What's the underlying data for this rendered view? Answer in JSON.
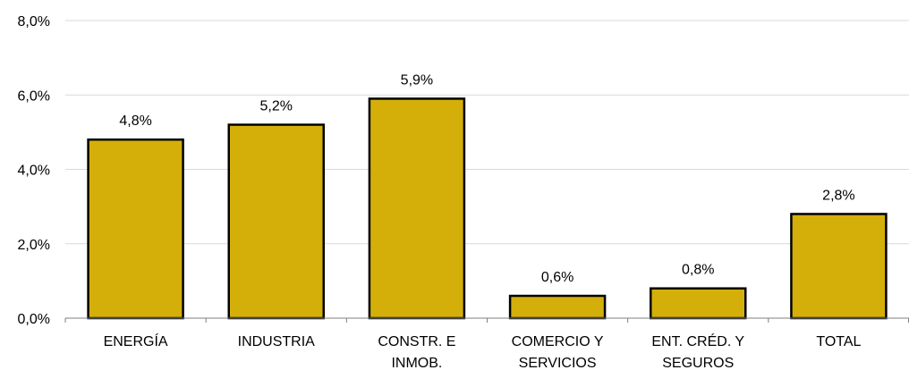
{
  "chart_data": {
    "type": "bar",
    "title": "",
    "xlabel": "",
    "ylabel": "",
    "categories": [
      [
        "ENERGÍA"
      ],
      [
        "INDUSTRIA"
      ],
      [
        "CONSTR. E",
        "INMOB."
      ],
      [
        "COMERCIO Y",
        "SERVICIOS"
      ],
      [
        "ENT. CRÉD. Y",
        "SEGUROS"
      ],
      [
        "TOTAL"
      ]
    ],
    "values": [
      4.8,
      5.2,
      5.9,
      0.6,
      0.8,
      2.8
    ],
    "value_labels": [
      "4,8%",
      "5,2%",
      "5,9%",
      "0,6%",
      "0,8%",
      "2,8%"
    ],
    "yticks": [
      0,
      2,
      4,
      6,
      8
    ],
    "ytick_labels": [
      "0,0%",
      "2,0%",
      "4,0%",
      "6,0%",
      "8,0%"
    ],
    "ylim": [
      0,
      8
    ],
    "grid": true,
    "bar_color": "#D4AF0A",
    "bar_outline": "#000000"
  }
}
